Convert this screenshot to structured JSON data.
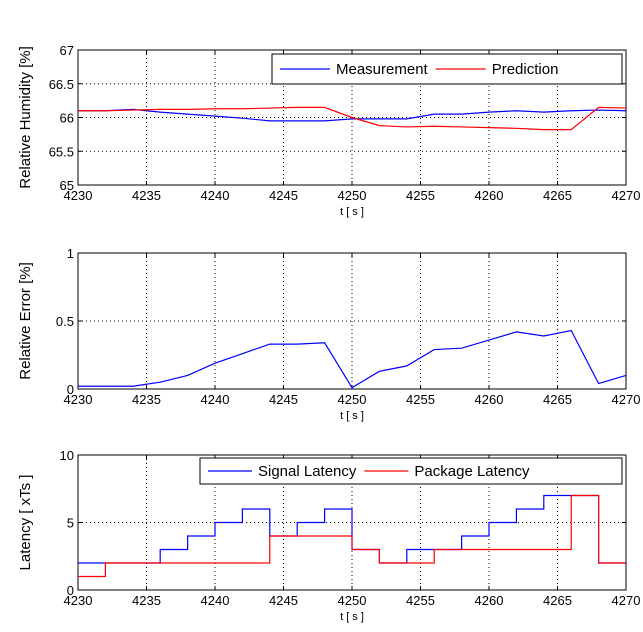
{
  "chart_data": [
    {
      "type": "line",
      "x_range": [
        4230,
        4270
      ],
      "ylim": [
        65,
        67
      ],
      "x_ticks": [
        4230,
        4235,
        4240,
        4245,
        4250,
        4255,
        4260,
        4265,
        4270
      ],
      "y_ticks": [
        "65",
        "65.5",
        "66",
        "66.5",
        "67"
      ],
      "xlabel": "t [ s ]",
      "ylabel": "Relative Humidity [%]",
      "grid": true,
      "legend_position": "top-right",
      "series": [
        {
          "name": "Measurement",
          "color": "#0000ff",
          "step": false,
          "x": [
            4230,
            4232,
            4234,
            4236,
            4238,
            4240,
            4242,
            4244,
            4246,
            4248,
            4250,
            4252,
            4254,
            4256,
            4258,
            4260,
            4262,
            4264,
            4266,
            4268,
            4270
          ],
          "y": [
            66.1,
            66.1,
            66.12,
            66.08,
            66.05,
            66.02,
            65.99,
            65.95,
            65.95,
            65.95,
            65.98,
            65.98,
            65.98,
            66.05,
            66.05,
            66.08,
            66.1,
            66.08,
            66.1,
            66.11,
            66.1
          ]
        },
        {
          "name": "Prediction",
          "color": "#ff0000",
          "step": false,
          "x": [
            4230,
            4232,
            4234,
            4236,
            4238,
            4240,
            4242,
            4244,
            4246,
            4248,
            4250,
            4252,
            4254,
            4256,
            4258,
            4260,
            4262,
            4264,
            4266,
            4268,
            4270
          ],
          "y": [
            66.1,
            66.1,
            66.11,
            66.12,
            66.12,
            66.13,
            66.13,
            66.14,
            66.15,
            66.15,
            66.0,
            65.88,
            65.86,
            65.87,
            65.86,
            65.85,
            65.84,
            65.82,
            65.82,
            66.15,
            66.14
          ]
        }
      ]
    },
    {
      "type": "line",
      "x_range": [
        4230,
        4270
      ],
      "ylim": [
        0,
        1
      ],
      "x_ticks": [
        4230,
        4235,
        4240,
        4245,
        4250,
        4255,
        4260,
        4265,
        4270
      ],
      "y_ticks": [
        "0",
        "0.5",
        "1"
      ],
      "xlabel": "t [ s ]",
      "ylabel": "Relative Error [%]",
      "grid": true,
      "series": [
        {
          "color": "#0000ff",
          "step": false,
          "x": [
            4230,
            4232,
            4234,
            4236,
            4238,
            4240,
            4242,
            4244,
            4246,
            4248,
            4250,
            4252,
            4254,
            4256,
            4258,
            4260,
            4262,
            4264,
            4266,
            4268,
            4270
          ],
          "y": [
            0.02,
            0.02,
            0.02,
            0.05,
            0.1,
            0.19,
            0.26,
            0.33,
            0.33,
            0.34,
            0.01,
            0.13,
            0.17,
            0.29,
            0.3,
            0.36,
            0.42,
            0.39,
            0.43,
            0.04,
            0.1
          ]
        }
      ]
    },
    {
      "type": "line",
      "x_range": [
        4230,
        4270
      ],
      "ylim": [
        0,
        10
      ],
      "x_ticks": [
        4230,
        4235,
        4240,
        4245,
        4250,
        4255,
        4260,
        4265,
        4270
      ],
      "y_ticks": [
        "0",
        "5",
        "10"
      ],
      "xlabel": "t [ s ]",
      "ylabel": "Latency [ xTs ]",
      "grid": true,
      "legend_position": "top-right",
      "series": [
        {
          "name": "Signal Latency",
          "color": "#0000ff",
          "step": true,
          "x": [
            4230,
            4232,
            4234,
            4236,
            4238,
            4240,
            4242,
            4244,
            4246,
            4248,
            4250,
            4252,
            4254,
            4256,
            4258,
            4260,
            4262,
            4264,
            4266,
            4268,
            4270
          ],
          "y": [
            2,
            2,
            2,
            3,
            4,
            5,
            6,
            4,
            5,
            6,
            3,
            2,
            3,
            3,
            4,
            5,
            6,
            7,
            7,
            2,
            2
          ]
        },
        {
          "name": "Package Latency",
          "color": "#ff0000",
          "step": true,
          "x": [
            4230,
            4232,
            4234,
            4236,
            4238,
            4240,
            4242,
            4244,
            4246,
            4248,
            4250,
            4252,
            4254,
            4256,
            4258,
            4260,
            4262,
            4264,
            4266,
            4268,
            4270
          ],
          "y": [
            1,
            2,
            2,
            2,
            2,
            2,
            2,
            4,
            4,
            4,
            3,
            2,
            2,
            3,
            3,
            3,
            3,
            3,
            7,
            2,
            2
          ]
        }
      ]
    }
  ]
}
